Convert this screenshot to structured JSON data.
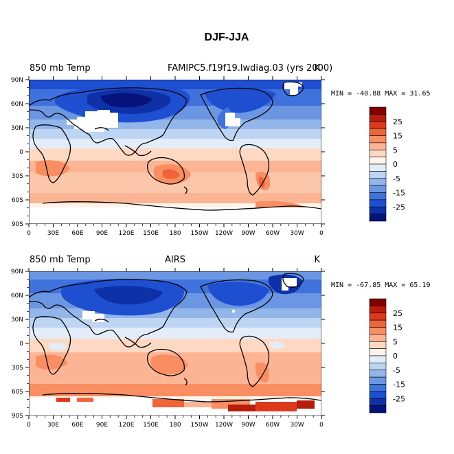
{
  "figure_title": "DJF-JJA",
  "panels": [
    {
      "left_label": "850 mb Temp",
      "center_label": "FAMIPC5.f19f19.lwdiag.03 (yrs 2000)",
      "units": "K",
      "min_max": "MIN = -40.88 MAX =  31.65"
    },
    {
      "left_label": "850 mb Temp",
      "center_label": "AIRS",
      "units": "K",
      "min_max": "MIN = -67.85 MAX =  65.19"
    }
  ],
  "x_ticks": [
    "0",
    "30E",
    "60E",
    "90E",
    "120E",
    "150E",
    "180",
    "150W",
    "120W",
    "90W",
    "60W",
    "30W",
    "0"
  ],
  "y_ticks": [
    "90N",
    "60N",
    "30N",
    "0",
    "30S",
    "60S",
    "90S"
  ],
  "colorbar": {
    "labels": [
      "25",
      "15",
      "5",
      "0",
      "-5",
      "-15",
      "-25"
    ],
    "colors": [
      "#800000",
      "#b71c0c",
      "#dc3a1c",
      "#ef6438",
      "#f88e62",
      "#fbb494",
      "#fdd8c2",
      "#fff3ea",
      "#e3edf9",
      "#bdd5f2",
      "#93b6ea",
      "#6a96e2",
      "#3f72dc",
      "#1e4fd0",
      "#0f31a8",
      "#06137a"
    ]
  },
  "colors": {
    "masked": "#ffffff",
    "coastline": "#000000"
  }
}
